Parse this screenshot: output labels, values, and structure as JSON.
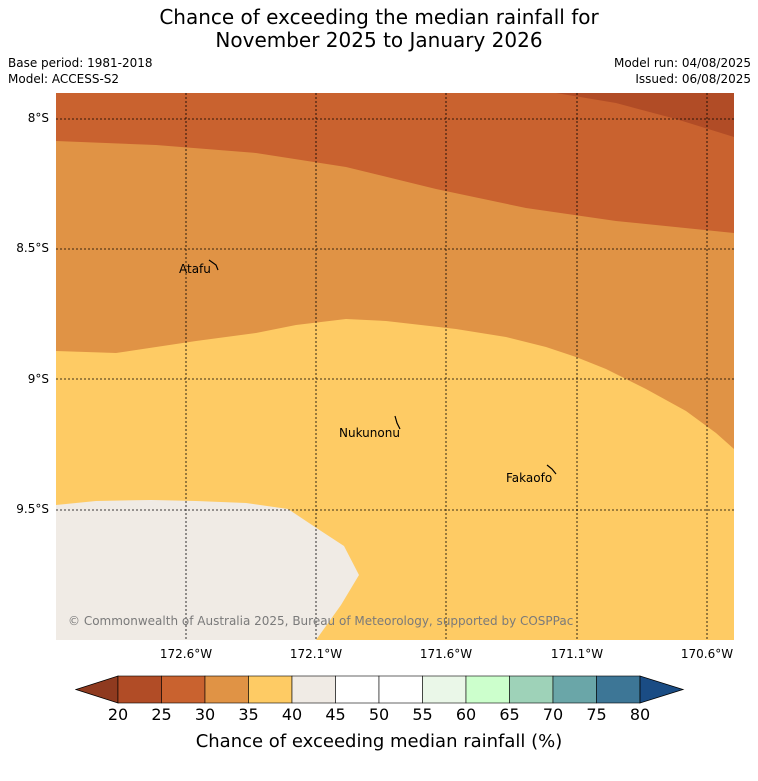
{
  "title": {
    "line1": "Chance of exceeding the median rainfall for",
    "line2": "November 2025 to January 2026"
  },
  "meta": {
    "base_period": "Base period: 1981-2018",
    "model": "Model: ACCESS-S2",
    "model_run": "Model run: 04/08/2025",
    "issued": "Issued: 06/08/2025"
  },
  "map": {
    "lat_labels": [
      "8°S",
      "8.5°S",
      "9°S",
      "9.5°S"
    ],
    "lon_labels": [
      "172.6°W",
      "172.1°W",
      "171.6°W",
      "171.1°W",
      "170.6°W"
    ],
    "places": [
      {
        "name": "Atafu"
      },
      {
        "name": "Nukunonu"
      },
      {
        "name": "Fakaofo"
      }
    ],
    "copyright": "© Commonwealth of Australia 2025, Bureau of Meteorology, supported by COSPPac",
    "colors": {
      "20-25": "#b14c26",
      "25-30": "#c9622f",
      "30-35": "#e09345",
      "35-40": "#fecb64",
      "40-45": "#f0ebe5",
      "45-55": "#ffffff",
      "55-60": "#eaf7e8",
      "60-65": "#ccffcc",
      "65-70": "#9ed2b8",
      "70-75": "#6aa6a8",
      "75-80": "#3d7696",
      "over-80": "#1a4c84",
      "under-20": "#8f3a1f"
    }
  },
  "colorbar": {
    "ticks": [
      "20",
      "25",
      "30",
      "35",
      "40",
      "45",
      "50",
      "55",
      "60",
      "65",
      "70",
      "75",
      "80"
    ],
    "colors": [
      "#b14c26",
      "#c9622f",
      "#e09345",
      "#fecb64",
      "#f0ebe5",
      "#ffffff",
      "#ffffff",
      "#eaf7e8",
      "#ccffcc",
      "#9ed2b8",
      "#6aa6a8",
      "#3d7696"
    ],
    "under_color": "#8f3a1f",
    "over_color": "#1a4c84",
    "label": "Chance of exceeding median rainfall (%)"
  }
}
